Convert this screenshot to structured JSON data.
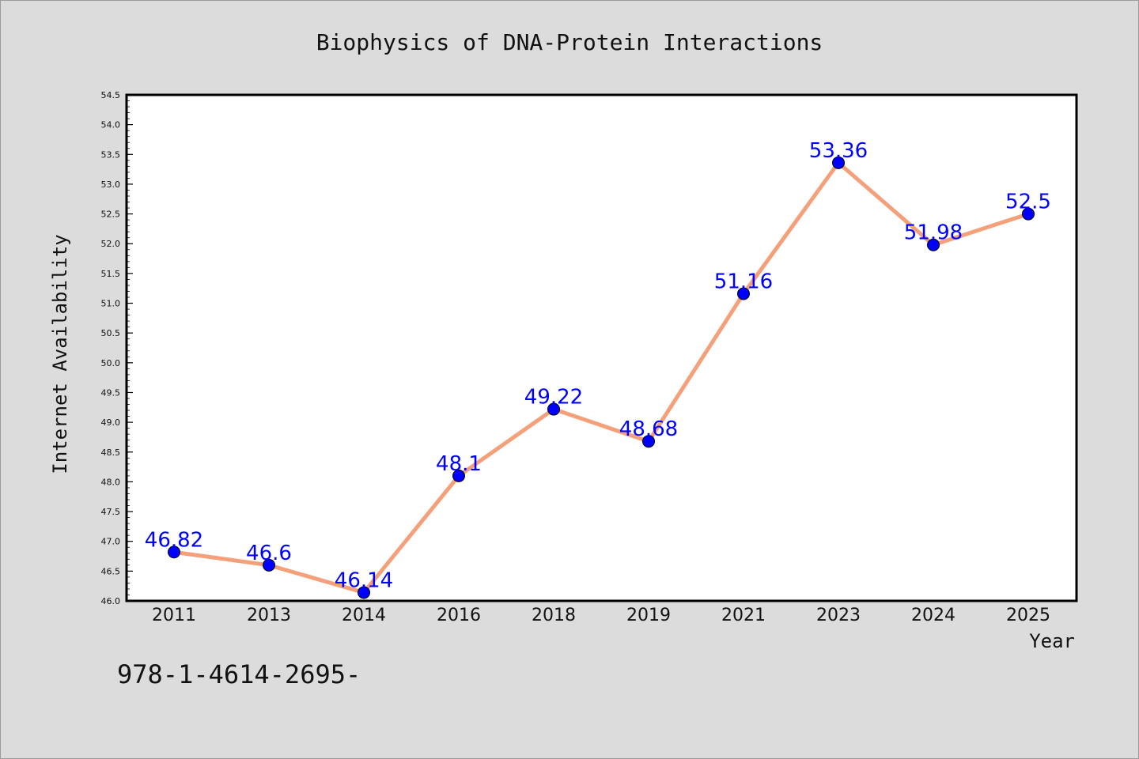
{
  "chart_data": {
    "type": "line",
    "title": "Biophysics of DNA-Protein Interactions",
    "xlabel": "Year",
    "ylabel": "Internet Availability",
    "categories": [
      "2011",
      "2013",
      "2014",
      "2016",
      "2018",
      "2019",
      "2021",
      "2023",
      "2024",
      "2025"
    ],
    "values": [
      46.82,
      46.6,
      46.14,
      48.1,
      49.22,
      48.68,
      51.16,
      53.36,
      51.98,
      52.5
    ],
    "data_labels": [
      "46.82",
      "46.6",
      "46.14",
      "48.1",
      "49.22",
      "48.68",
      "51.16",
      "53.36",
      "51.98",
      "52.5"
    ],
    "ylim": [
      46.0,
      54.5
    ],
    "yticks": [
      "46.0",
      "46.5",
      "47.0",
      "47.5",
      "48.0",
      "48.5",
      "49.0",
      "49.5",
      "50.0",
      "50.5",
      "51.0",
      "51.5",
      "52.0",
      "52.5",
      "53.0",
      "53.5",
      "54.0",
      "54.5"
    ],
    "grid": false,
    "line_color": "#f4a07a",
    "marker_color": "#0000ff",
    "label_color": "#0000ff"
  },
  "annotation": "978-1-4614-2695-"
}
